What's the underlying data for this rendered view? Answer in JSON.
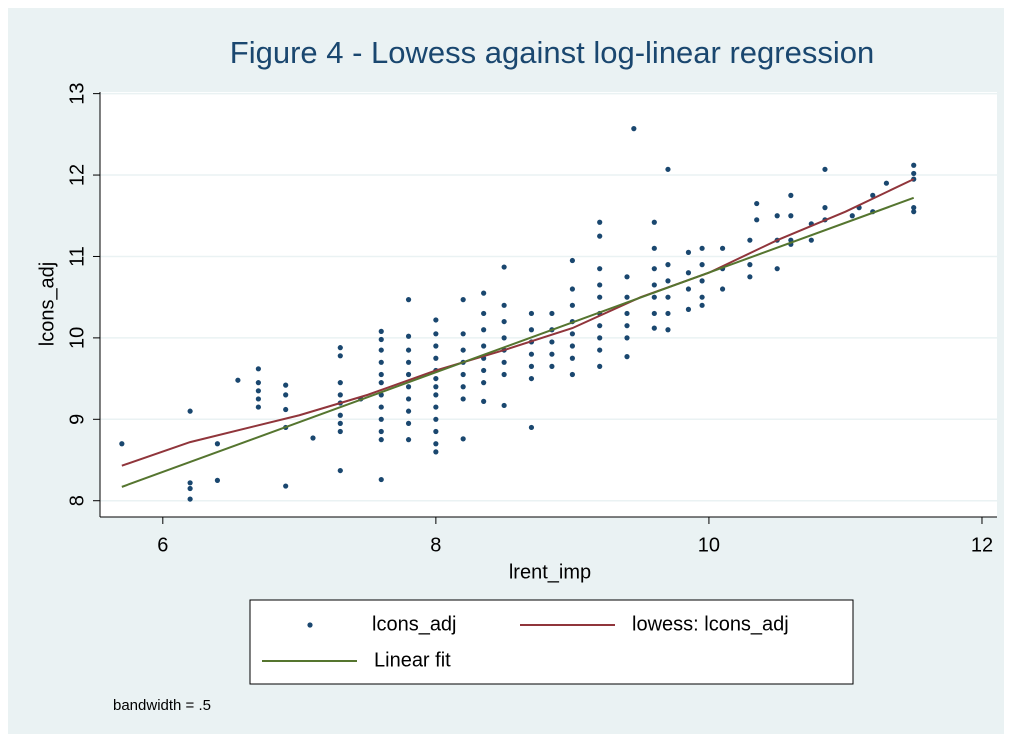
{
  "chart_data": {
    "type": "scatter",
    "title": "Figure 4 - Lowess against log-linear regression",
    "x_label": "lrent_imp",
    "y_label": "lcons_adj",
    "note": "bandwidth = .5",
    "xlim": [
      5.54,
      12.11
    ],
    "ylim": [
      7.8,
      13.02
    ],
    "xticks": [
      6,
      8,
      10,
      12
    ],
    "yticks": [
      8,
      9,
      10,
      11,
      12,
      13
    ],
    "grid": true,
    "series": [
      {
        "name": "lcons_adj",
        "mode": "markers",
        "color": "#1a476f",
        "x": [
          5.7,
          6.2,
          6.2,
          6.2,
          6.2,
          6.4,
          6.4,
          6.55,
          6.7,
          6.7,
          6.7,
          6.7,
          6.7,
          6.9,
          6.9,
          6.9,
          6.9,
          6.9,
          7.1,
          7.3,
          7.3,
          7.3,
          7.3,
          7.3,
          7.3,
          7.3,
          7.3,
          7.3,
          7.45,
          7.6,
          7.6,
          7.6,
          7.6,
          7.6,
          7.6,
          7.6,
          7.6,
          7.6,
          7.6,
          7.6,
          7.6,
          7.8,
          7.8,
          7.8,
          7.8,
          7.8,
          7.8,
          7.8,
          7.8,
          7.8,
          7.8,
          8.0,
          8.0,
          8.0,
          8.0,
          8.0,
          8.0,
          8.0,
          8.0,
          8.0,
          8.0,
          8.0,
          8.0,
          8.0,
          8.2,
          8.2,
          8.2,
          8.2,
          8.2,
          8.2,
          8.2,
          8.2,
          8.35,
          8.35,
          8.35,
          8.35,
          8.35,
          8.35,
          8.35,
          8.35,
          8.5,
          8.5,
          8.5,
          8.5,
          8.5,
          8.5,
          8.5,
          8.5,
          8.7,
          8.7,
          8.7,
          8.7,
          8.7,
          8.7,
          8.7,
          8.85,
          8.85,
          8.85,
          8.85,
          8.85,
          9.0,
          9.0,
          9.0,
          9.0,
          9.0,
          9.0,
          9.0,
          9.0,
          9.2,
          9.2,
          9.2,
          9.2,
          9.2,
          9.2,
          9.2,
          9.2,
          9.2,
          9.2,
          9.4,
          9.4,
          9.4,
          9.4,
          9.4,
          9.4,
          9.45,
          9.6,
          9.6,
          9.6,
          9.6,
          9.6,
          9.6,
          9.6,
          9.7,
          9.7,
          9.7,
          9.7,
          9.7,
          9.7,
          9.85,
          9.85,
          9.85,
          9.85,
          9.95,
          9.95,
          9.95,
          9.95,
          9.95,
          10.1,
          10.1,
          10.1,
          10.3,
          10.3,
          10.3,
          10.35,
          10.35,
          10.5,
          10.5,
          10.5,
          10.6,
          10.6,
          10.6,
          10.6,
          10.75,
          10.75,
          10.85,
          10.85,
          10.85,
          11.05,
          11.1,
          11.2,
          11.2,
          11.3,
          11.5,
          11.5,
          11.5,
          11.5,
          11.5
        ],
        "values": [
          8.7,
          9.1,
          8.22,
          8.15,
          8.02,
          8.7,
          8.25,
          9.48,
          9.62,
          9.45,
          9.35,
          9.25,
          9.15,
          9.42,
          9.3,
          9.12,
          8.9,
          8.18,
          8.77,
          9.88,
          9.78,
          9.45,
          9.3,
          9.2,
          9.05,
          8.95,
          8.85,
          8.37,
          9.25,
          10.08,
          9.98,
          9.85,
          9.7,
          9.55,
          9.45,
          9.3,
          9.15,
          9.0,
          8.85,
          8.75,
          8.26,
          10.47,
          10.02,
          9.85,
          9.7,
          9.55,
          9.4,
          9.25,
          9.1,
          8.95,
          8.75,
          10.22,
          10.05,
          9.9,
          9.75,
          9.6,
          9.5,
          9.4,
          9.3,
          9.15,
          9.0,
          8.85,
          8.7,
          8.6,
          10.47,
          10.05,
          9.85,
          9.7,
          9.55,
          9.4,
          9.25,
          8.76,
          10.55,
          10.3,
          10.1,
          9.9,
          9.75,
          9.6,
          9.45,
          9.22,
          10.87,
          10.4,
          10.2,
          10.0,
          9.85,
          9.7,
          9.55,
          9.17,
          10.3,
          10.1,
          9.95,
          9.8,
          9.65,
          9.5,
          8.9,
          10.3,
          10.1,
          9.95,
          9.8,
          9.65,
          10.95,
          10.6,
          10.4,
          10.2,
          10.05,
          9.9,
          9.75,
          9.55,
          11.42,
          11.25,
          10.85,
          10.65,
          10.5,
          10.3,
          10.15,
          10.0,
          9.85,
          9.65,
          10.75,
          10.5,
          10.3,
          10.15,
          10.0,
          9.77,
          12.57,
          11.42,
          11.1,
          10.85,
          10.65,
          10.5,
          10.3,
          10.12,
          12.07,
          10.9,
          10.7,
          10.5,
          10.3,
          10.1,
          11.05,
          10.8,
          10.6,
          10.35,
          11.1,
          10.9,
          10.7,
          10.5,
          10.4,
          11.1,
          10.85,
          10.6,
          11.2,
          10.9,
          10.75,
          11.65,
          11.45,
          11.5,
          11.2,
          10.85,
          11.75,
          11.5,
          11.2,
          11.15,
          11.4,
          11.2,
          12.07,
          11.6,
          11.45,
          11.5,
          11.6,
          11.75,
          11.55,
          11.9,
          12.12,
          12.02,
          11.95,
          11.6,
          11.55
        ]
      },
      {
        "name": "lowess: lcons_adj",
        "mode": "line",
        "color": "#90353b",
        "x": [
          5.7,
          6.2,
          7,
          7.5,
          8,
          8.5,
          9,
          9.5,
          10,
          10.5,
          11,
          11.5
        ],
        "values": [
          8.43,
          8.72,
          9.05,
          9.3,
          9.6,
          9.85,
          10.12,
          10.5,
          10.8,
          11.2,
          11.55,
          11.95
        ]
      },
      {
        "name": "Linear fit",
        "mode": "line",
        "color": "#55752f",
        "x": [
          5.7,
          11.5
        ],
        "values": [
          8.17,
          11.72
        ]
      }
    ]
  }
}
